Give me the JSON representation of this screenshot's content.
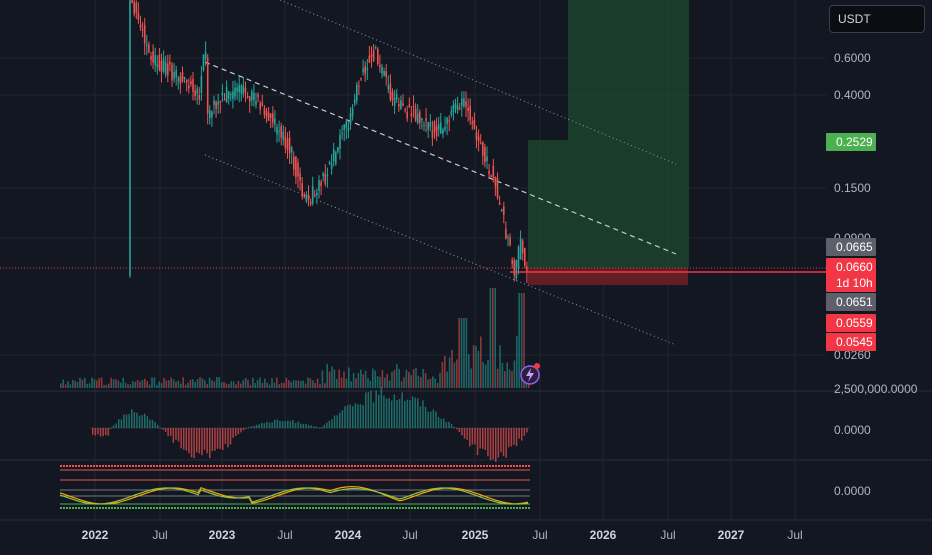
{
  "chart_data": {
    "type": "candlestick",
    "currency": "USDT",
    "x_axis": {
      "labels": [
        "2022",
        "Jul",
        "2023",
        "Jul",
        "2024",
        "Jul",
        "2025",
        "Jul",
        "2026",
        "Jul",
        "2027",
        "Jul"
      ]
    },
    "price_axis": {
      "scale": "log",
      "tick_labels": [
        "0.6000",
        "0.4000",
        "0.1500",
        "0.0900",
        "0.0260"
      ]
    },
    "price_labels": [
      {
        "value": "0.2529",
        "color": "#4caf50"
      },
      {
        "value": "0.0665",
        "color": "#5d606b"
      },
      {
        "value": "0.0660",
        "sub": "1d 10h",
        "color": "#f23645"
      },
      {
        "value": "0.0651",
        "color": "#5d606b"
      },
      {
        "value": "0.0559",
        "color": "#f23645"
      },
      {
        "value": "0.0545",
        "color": "#f23645"
      }
    ],
    "volume_pane": {
      "tick_label": "2,500,000.0000"
    },
    "momentum_pane": {
      "tick_label": "0.0000"
    },
    "oscillator_pane": {
      "tick_label": "0.0000"
    },
    "position": {
      "entry": 0.066,
      "target": 0.2529,
      "stop": 0.0545
    },
    "colors": {
      "up": "#26a69a",
      "down": "#ef5350",
      "profit_zone": "#1e4a2f",
      "loss_zone": "#6b1f24"
    }
  }
}
